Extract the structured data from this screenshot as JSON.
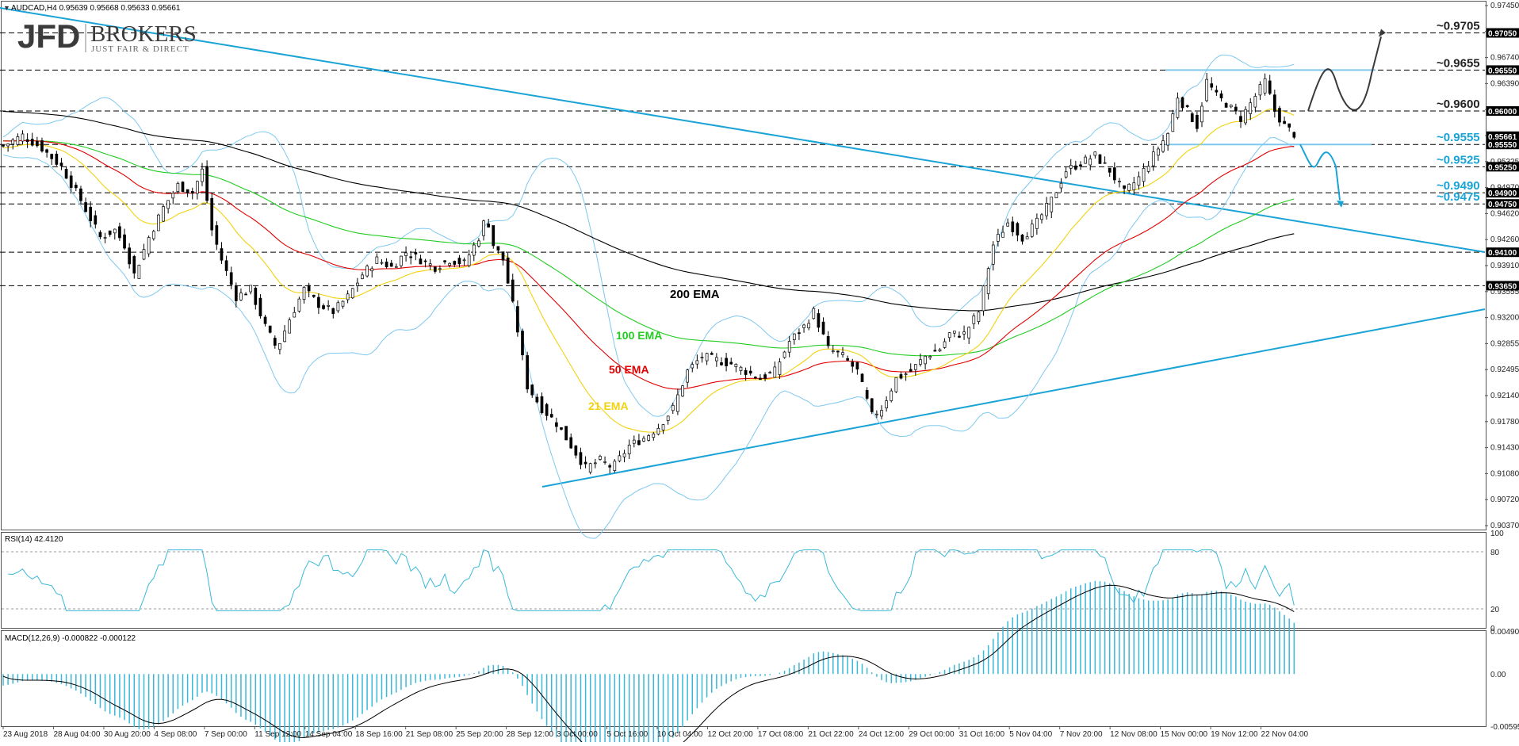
{
  "header": {
    "symbol_info": "AUDCAD,H4  0.95639 0.95668 0.95633 0.95661"
  },
  "logo": {
    "brand_left": "JFD",
    "brand_right": "BROKERS",
    "tagline": "JUST FAIR & DIRECT"
  },
  "colors": {
    "trendline": "#1aa3d6",
    "bollinger": "#7ec8ef",
    "ema21": "#f2d20f",
    "ema50": "#e00000",
    "ema100": "#22cc22",
    "ema200": "#000000",
    "level_label_blue": "#1aa3d6",
    "level_label_black": "#222222",
    "macd_hist": "#3bb8d8",
    "rsi_line": "#3bb8d8",
    "candle_up": "#ffffff",
    "candle_down": "#000000"
  },
  "chart_data": {
    "type": "candlestick",
    "price_axis_ticks": [
      "0.97450",
      "0.97095",
      "0.96740",
      "0.96390",
      "0.96030",
      "0.95680",
      "0.95325",
      "0.94970",
      "0.94620",
      "0.94260",
      "0.93910",
      "0.93555",
      "0.93200",
      "0.92855",
      "0.92495",
      "0.92140",
      "0.91780",
      "0.91430",
      "0.91080",
      "0.90720",
      "0.90370"
    ],
    "price_range": [
      0.9037,
      0.9745
    ],
    "price_badges": [
      "0.97050",
      "0.96550",
      "0.96000",
      "0.95661",
      "0.95550",
      "0.95250",
      "0.94900",
      "0.94750",
      "0.94100",
      "0.93650"
    ],
    "level_labels": [
      {
        "text": "~0.9705",
        "price": 0.9705,
        "color": "black"
      },
      {
        "text": "~0.9655",
        "price": 0.9655,
        "color": "black"
      },
      {
        "text": "~0.9600",
        "price": 0.96,
        "color": "black"
      },
      {
        "text": "~0.9555",
        "price": 0.9555,
        "color": "blue"
      },
      {
        "text": "~0.9525",
        "price": 0.9525,
        "color": "blue"
      },
      {
        "text": "~0.9490",
        "price": 0.949,
        "color": "blue"
      },
      {
        "text": "~0.9475",
        "price": 0.9475,
        "color": "blue"
      }
    ],
    "ema_labels": {
      "ema200": "200 EMA",
      "ema100": "100 EMA",
      "ema50": "50 EMA",
      "ema21": "21 EMA"
    },
    "x_labels": [
      "23 Aug 2018",
      "28 Aug 04:00",
      "30 Aug 20:00",
      "4 Sep 08:00",
      "7 Sep 00:00",
      "11 Sep 12:00",
      "14 Sep 04:00",
      "18 Sep 16:00",
      "21 Sep 08:00",
      "25 Sep 20:00",
      "28 Sep 12:00",
      "3 Oct 00:00",
      "5 Oct 16:00",
      "10 Oct 04:00",
      "12 Oct 20:00",
      "17 Oct 08:00",
      "21 Oct 22:00",
      "24 Oct 12:00",
      "29 Oct 00:00",
      "31 Oct 16:00",
      "5 Nov 04:00",
      "7 Nov 20:00",
      "12 Nov 08:00",
      "15 Nov 00:00",
      "19 Nov 12:00",
      "22 Nov 04:00"
    ],
    "close_path": [
      [
        0,
        0.9553
      ],
      [
        20,
        0.9567
      ],
      [
        40,
        0.955
      ],
      [
        60,
        0.9525
      ],
      [
        80,
        0.948
      ],
      [
        100,
        0.943
      ],
      [
        115,
        0.944
      ],
      [
        125,
        0.942
      ],
      [
        135,
        0.938
      ],
      [
        150,
        0.943
      ],
      [
        165,
        0.947
      ],
      [
        180,
        0.95
      ],
      [
        195,
        0.949
      ],
      [
        205,
        0.952
      ],
      [
        215,
        0.944
      ],
      [
        225,
        0.94
      ],
      [
        240,
        0.935
      ],
      [
        255,
        0.936
      ],
      [
        270,
        0.931
      ],
      [
        282,
        0.928
      ],
      [
        295,
        0.932
      ],
      [
        310,
        0.936
      ],
      [
        325,
        0.934
      ],
      [
        340,
        0.933
      ],
      [
        355,
        0.935
      ],
      [
        370,
        0.938
      ],
      [
        385,
        0.94
      ],
      [
        400,
        0.939
      ],
      [
        415,
        0.941
      ],
      [
        430,
        0.94
      ],
      [
        445,
        0.939
      ],
      [
        460,
        0.94
      ],
      [
        475,
        0.9395
      ],
      [
        490,
        0.943
      ],
      [
        498,
        0.946
      ],
      [
        505,
        0.942
      ],
      [
        515,
        0.94
      ],
      [
        528,
        0.932
      ],
      [
        540,
        0.923
      ],
      [
        555,
        0.92
      ],
      [
        570,
        0.918
      ],
      [
        585,
        0.915
      ],
      [
        600,
        0.912
      ],
      [
        615,
        0.913
      ],
      [
        628,
        0.912
      ],
      [
        645,
        0.915
      ],
      [
        660,
        0.916
      ],
      [
        675,
        0.9175
      ],
      [
        690,
        0.92
      ],
      [
        705,
        0.925
      ],
      [
        720,
        0.927
      ],
      [
        735,
        0.9265
      ],
      [
        750,
        0.926
      ],
      [
        765,
        0.925
      ],
      [
        780,
        0.924
      ],
      [
        795,
        0.925
      ],
      [
        810,
        0.929
      ],
      [
        825,
        0.931
      ],
      [
        835,
        0.933
      ],
      [
        850,
        0.928
      ],
      [
        865,
        0.927
      ],
      [
        880,
        0.925
      ],
      [
        895,
        0.919
      ],
      [
        905,
        0.92
      ],
      [
        920,
        0.924
      ],
      [
        935,
        0.925
      ],
      [
        950,
        0.927
      ],
      [
        965,
        0.928
      ],
      [
        975,
        0.93
      ],
      [
        990,
        0.93
      ],
      [
        1005,
        0.933
      ],
      [
        1020,
        0.942
      ],
      [
        1035,
        0.945
      ],
      [
        1050,
        0.943
      ],
      [
        1065,
        0.945
      ],
      [
        1080,
        0.948
      ],
      [
        1095,
        0.952
      ],
      [
        1110,
        0.953
      ],
      [
        1125,
        0.954
      ],
      [
        1140,
        0.952
      ],
      [
        1155,
        0.949
      ],
      [
        1170,
        0.951
      ],
      [
        1185,
        0.954
      ],
      [
        1200,
        0.957
      ],
      [
        1210,
        0.962
      ],
      [
        1220,
        0.96
      ],
      [
        1230,
        0.958
      ],
      [
        1240,
        0.964
      ],
      [
        1250,
        0.962
      ],
      [
        1260,
        0.961
      ],
      [
        1275,
        0.959
      ],
      [
        1290,
        0.962
      ],
      [
        1300,
        0.964
      ],
      [
        1310,
        0.96
      ],
      [
        1320,
        0.958
      ],
      [
        1333,
        0.9566
      ]
    ],
    "rsi": {
      "label": "RSI(14) 42.4120",
      "axis": [
        "100",
        "80",
        "20",
        "0"
      ]
    },
    "macd": {
      "label": "MACD(12,26,9) -0.000822 -0.000122",
      "axis": [
        "0.004903",
        "0.00",
        "-0.005955"
      ]
    }
  }
}
